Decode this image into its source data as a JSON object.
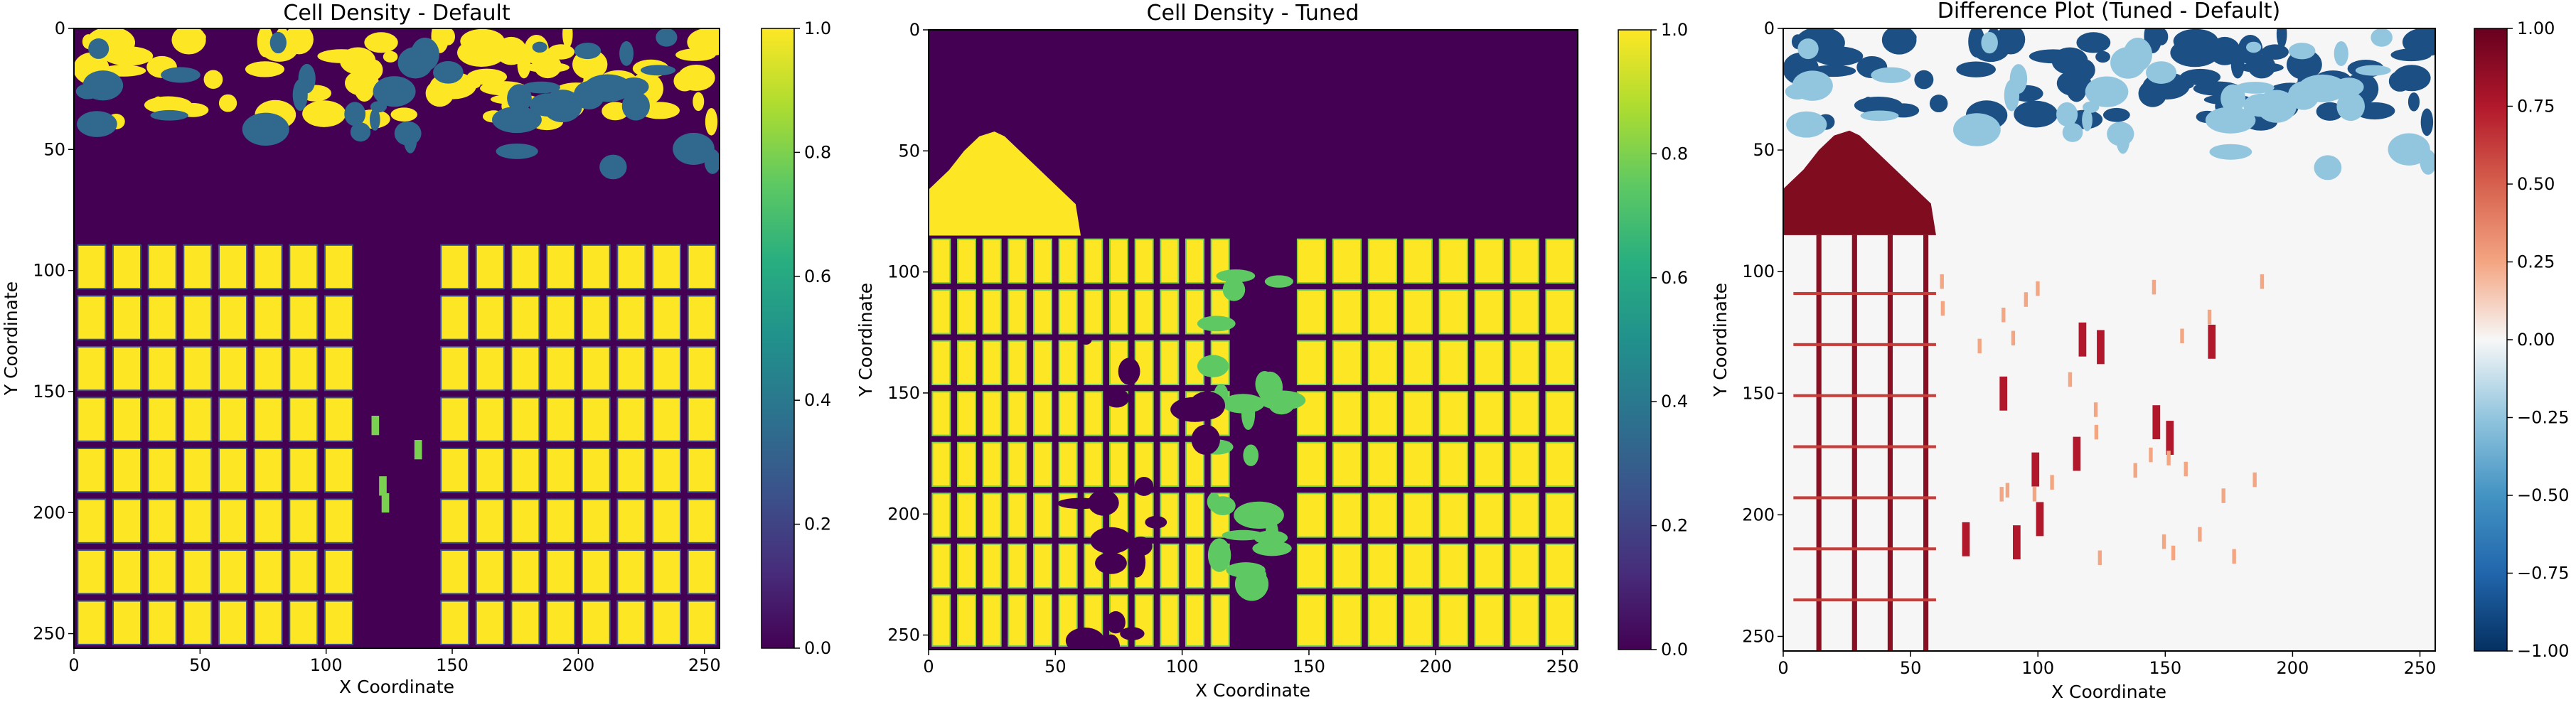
{
  "chart_data": [
    {
      "type": "heatmap",
      "title": "Cell Density - Default",
      "xlabel": "X Coordinate",
      "ylabel": "Y Coordinate",
      "xlim": [
        0,
        256
      ],
      "ylim": [
        256,
        0
      ],
      "xticks": [
        0,
        50,
        100,
        150,
        200,
        250
      ],
      "yticks": [
        0,
        50,
        100,
        150,
        200,
        250
      ],
      "colormap": "viridis",
      "colorbar": {
        "range": [
          0.0,
          1.0
        ],
        "ticks": [
          "0.0",
          "0.2",
          "0.4",
          "0.6",
          "0.8",
          "1.0"
        ]
      },
      "features": {
        "blob_band_y": [
          0,
          45
        ],
        "array_left_x": [
          0,
          112
        ],
        "array_right_x": [
          144,
          256
        ],
        "array_y": [
          88,
          256
        ],
        "grid_rows_y": [
          88,
          109,
          130,
          151,
          172,
          193,
          214,
          235,
          256
        ],
        "left_col_width": 14
      }
    },
    {
      "type": "heatmap",
      "title": "Cell Density - Tuned",
      "xlabel": "X Coordinate",
      "ylabel": "Y Coordinate",
      "xlim": [
        0,
        256
      ],
      "ylim": [
        256,
        0
      ],
      "xticks": [
        0,
        50,
        100,
        150,
        200,
        250
      ],
      "yticks": [
        0,
        50,
        100,
        150,
        200,
        250
      ],
      "colormap": "viridis",
      "colorbar": {
        "range": [
          0.0,
          1.0
        ],
        "ticks": [
          "0.0",
          "0.2",
          "0.4",
          "0.6",
          "0.8",
          "1.0"
        ]
      },
      "features": {
        "dome_peak": [
          28,
          42
        ],
        "dome_base_y": 85,
        "array_left_x": [
          0,
          112
        ],
        "array_right_x": [
          144,
          256
        ],
        "array_y": [
          85,
          256
        ]
      }
    },
    {
      "type": "heatmap",
      "title": "Difference Plot (Tuned - Default)",
      "xlabel": "X Coordinate",
      "ylabel": "Y Coordinate",
      "xlim": [
        0,
        256
      ],
      "ylim": [
        256,
        0
      ],
      "xticks": [
        0,
        50,
        100,
        150,
        200,
        250
      ],
      "yticks": [
        0,
        50,
        100,
        150,
        200,
        250
      ],
      "colormap": "RdBu_r",
      "colorbar": {
        "range": [
          -1.0,
          1.0
        ],
        "ticks": [
          "−1.00",
          "−0.75",
          "−0.50",
          "−0.25",
          "0.00",
          "0.25",
          "0.50",
          "0.75",
          "1.00"
        ]
      },
      "features": {
        "negative_blob_band_y": [
          0,
          45
        ],
        "positive_dome_x": [
          0,
          60
        ],
        "positive_dome_y": [
          42,
          85
        ],
        "positive_vertical_lines_x": [
          14,
          28,
          42,
          56
        ],
        "positive_horizontal_lines_y": [
          109,
          130,
          151,
          172,
          193,
          214,
          235
        ]
      }
    }
  ]
}
